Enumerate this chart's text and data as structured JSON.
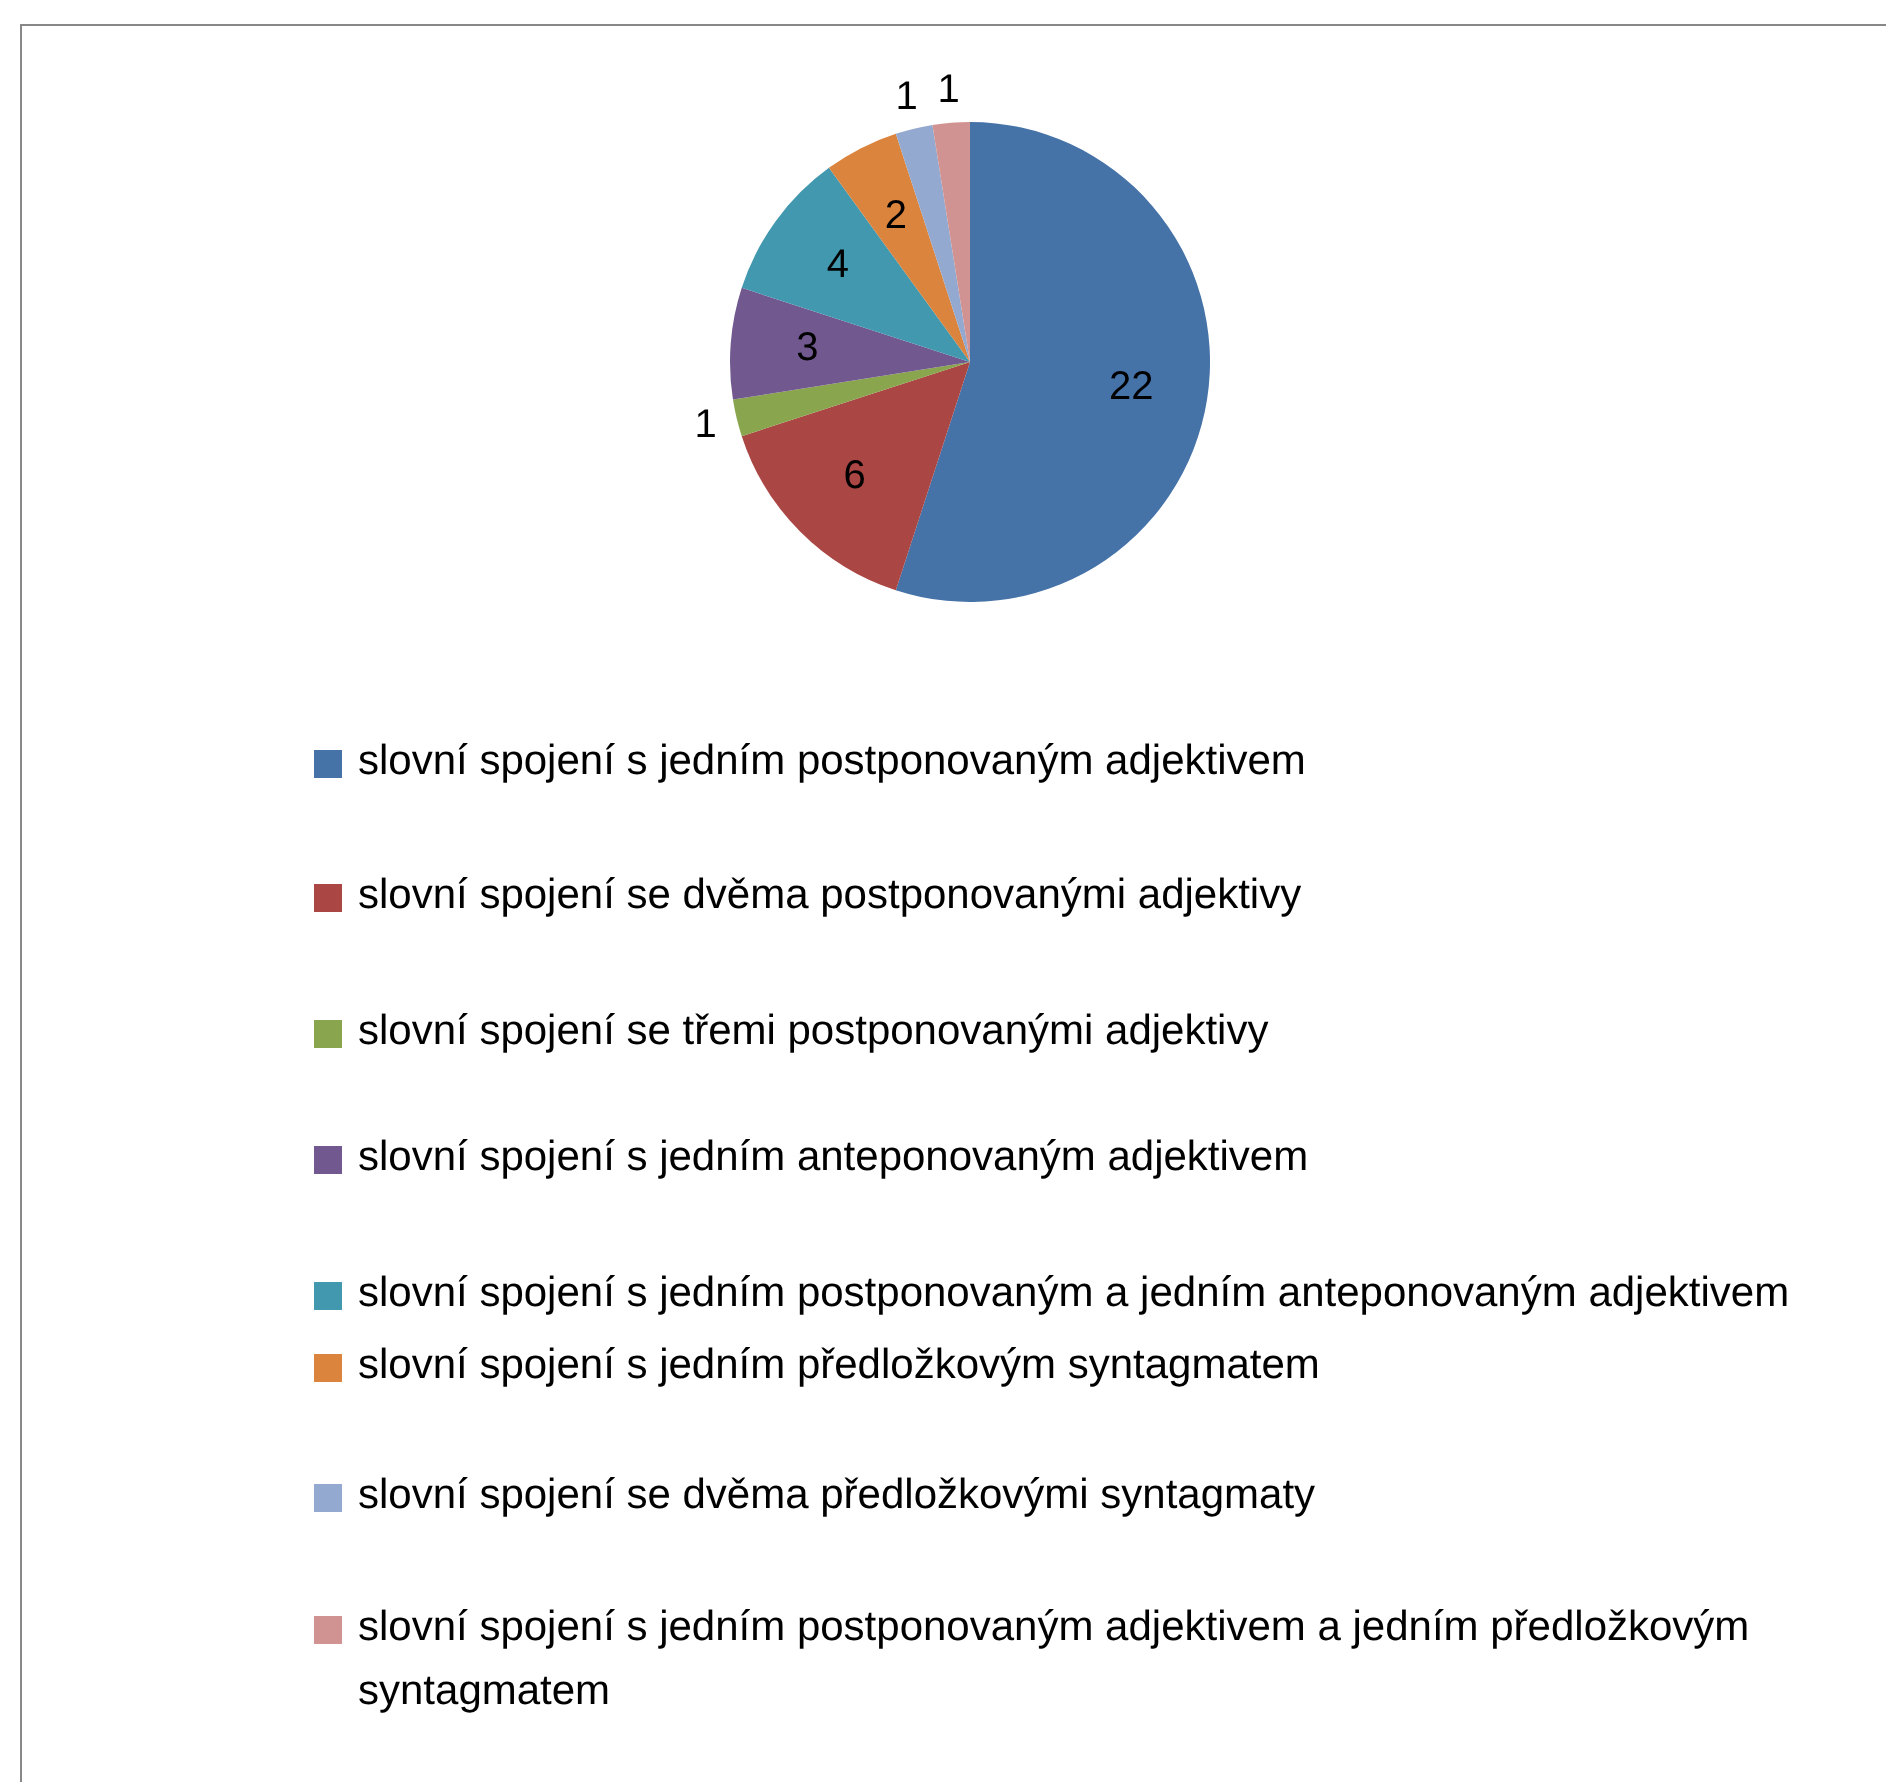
{
  "chart_data": {
    "type": "pie",
    "categories": [
      "slovní spojení s jedním postponovaným adjektivem",
      "slovní spojení se dvěma postponovanými adjektivy",
      "slovní spojení se třemi postponovanými adjektivy",
      "slovní spojení s jedním anteponovaným adjektivem",
      "slovní spojení s jedním postponovaným a jedním anteponovaným adjektivem",
      "slovní spojení s jedním předložkovým syntagmatem",
      "slovní spojení se dvěma předložkovými syntagmaty",
      "slovní spojení s jedním postponovaným adjektivem a jedním předložkovým syntagmatem"
    ],
    "values": [
      22,
      6,
      1,
      3,
      4,
      2,
      1,
      1
    ],
    "colors": [
      "#4572a7",
      "#aa4643",
      "#89a54e",
      "#71588f",
      "#4198af",
      "#db843d",
      "#93a9cf",
      "#d19392"
    ],
    "data_labels": true,
    "legend": "bottom"
  }
}
